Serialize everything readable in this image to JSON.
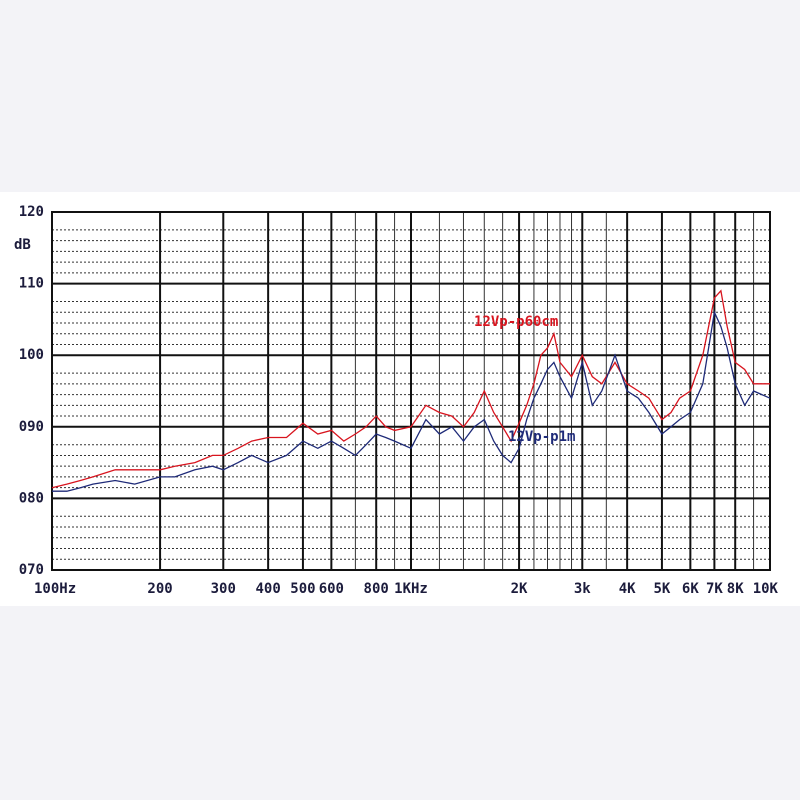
{
  "chart_data": {
    "type": "line",
    "ylabel": "dB",
    "xscale": "log",
    "xlim": [
      100,
      10000
    ],
    "ylim": [
      70,
      120
    ],
    "yticks": [
      {
        "value": 70,
        "label": "070"
      },
      {
        "value": 80,
        "label": "080"
      },
      {
        "value": 90,
        "label": "090"
      },
      100,
      110,
      120
    ],
    "y_minor_ticks": [
      71.5,
      73,
      74.5,
      76,
      77.5,
      81.5,
      83,
      84.5,
      86,
      87.5,
      91.5,
      93,
      94.5,
      96,
      97.5,
      101.5,
      103,
      104.5,
      106,
      107.5,
      111.5,
      113,
      114.5,
      116,
      117.5
    ],
    "xticks": [
      {
        "value": 100,
        "label": "100Hz"
      },
      200,
      300,
      400,
      500,
      600,
      800,
      {
        "value": 1000,
        "label": "1KHz"
      },
      {
        "value": 2000,
        "label": "2K"
      },
      {
        "value": 3000,
        "label": "3k"
      },
      {
        "value": 4000,
        "label": "4K"
      },
      {
        "value": 5000,
        "label": "5K"
      },
      {
        "value": 6000,
        "label": "6K"
      },
      {
        "value": 7000,
        "label": "7K"
      },
      {
        "value": 8000,
        "label": "8K"
      },
      {
        "value": 10000,
        "label": "10K"
      }
    ],
    "x_minor_ticks": [
      700,
      900,
      1200,
      1400,
      1600,
      1800,
      2200,
      2400,
      2600,
      2800,
      3500,
      9000
    ],
    "grid": true,
    "x": [
      100,
      110,
      120,
      130,
      150,
      170,
      200,
      220,
      250,
      280,
      300,
      330,
      360,
      400,
      450,
      500,
      550,
      600,
      650,
      700,
      750,
      800,
      850,
      900,
      1000,
      1100,
      1200,
      1300,
      1400,
      1500,
      1600,
      1700,
      1800,
      1900,
      2000,
      2100,
      2200,
      2300,
      2400,
      2500,
      2600,
      2800,
      3000,
      3200,
      3400,
      3700,
      4000,
      4300,
      4600,
      5000,
      5300,
      5600,
      6000,
      6500,
      7000,
      7300,
      7600,
      8000,
      8500,
      9000,
      10000
    ],
    "series": [
      {
        "name": "12Vp-p60cm",
        "color": "#d8141e",
        "values": [
          81.5,
          82,
          82.5,
          83,
          84,
          84,
          84,
          84.5,
          85,
          86,
          86,
          87,
          88,
          88.5,
          88.5,
          90.5,
          89,
          89.5,
          88,
          89,
          90,
          91.5,
          90,
          89.5,
          90,
          93,
          92,
          91.5,
          90,
          92,
          95,
          92,
          90,
          88,
          90.5,
          93,
          96,
          100,
          101,
          103,
          99,
          97,
          100,
          97,
          96,
          99,
          96,
          95,
          94,
          91,
          92,
          94,
          95,
          100,
          108,
          109,
          104,
          99,
          98,
          96,
          96
        ]
      },
      {
        "name": "12Vp-p1m",
        "color": "#1e2a78",
        "values": [
          81,
          81,
          81.5,
          82,
          82.5,
          82,
          83,
          83,
          84,
          84.5,
          84,
          85,
          86,
          85,
          86,
          88,
          87,
          88,
          87,
          86,
          87.5,
          89,
          88.5,
          88,
          87,
          91,
          89,
          90,
          88,
          90,
          91,
          88,
          86,
          85,
          87,
          91,
          94,
          96,
          98,
          99,
          97,
          94,
          99,
          93,
          95,
          100,
          95,
          94,
          92,
          89,
          90,
          91,
          92,
          96,
          106,
          104,
          101,
          96,
          93,
          95,
          94
        ]
      }
    ]
  }
}
